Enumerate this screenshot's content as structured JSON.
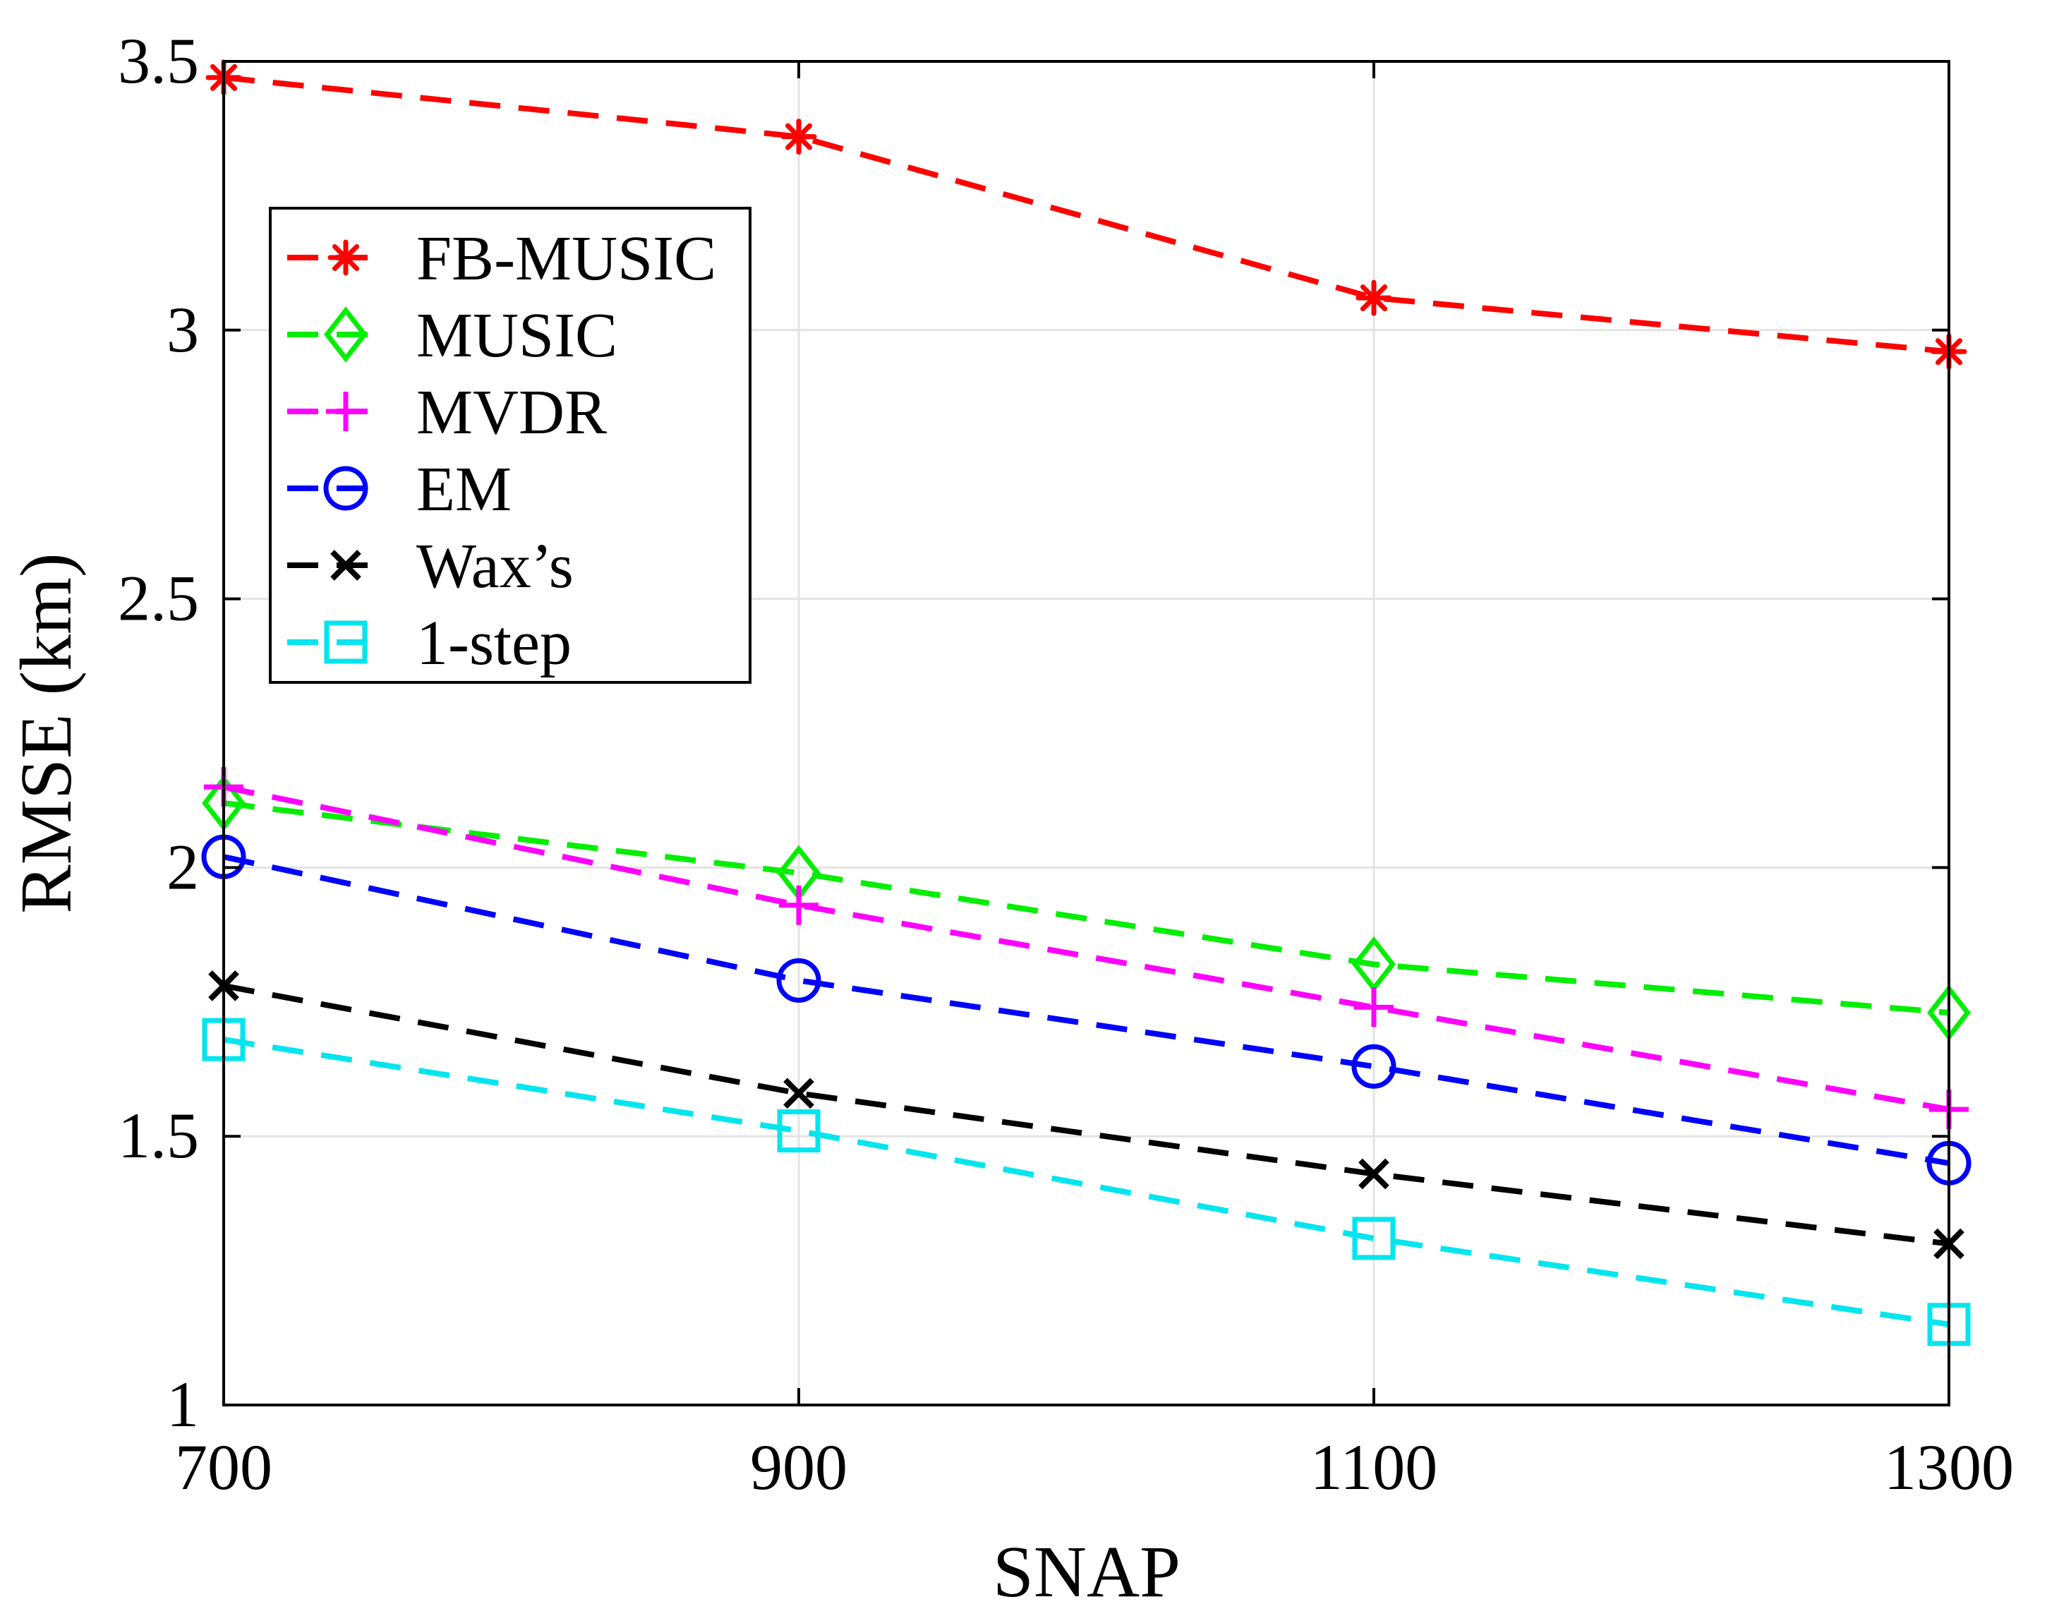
{
  "chart_data": {
    "type": "line",
    "title": "",
    "xlabel": "SNAP",
    "ylabel": "RMSE (km)",
    "x": [
      700,
      900,
      1100,
      1300
    ],
    "xlim": [
      700,
      1300
    ],
    "ylim": [
      1,
      3.5
    ],
    "xticks": [
      700,
      900,
      1100,
      1300
    ],
    "xtick_labels": [
      "700",
      "900",
      "1100",
      "1300"
    ],
    "yticks": [
      1,
      1.5,
      2,
      2.5,
      3,
      3.5
    ],
    "ytick_labels": [
      "1",
      "1.5",
      "2",
      "2.5",
      "3",
      "3.5"
    ],
    "grid": true,
    "legend_position": "upper-left",
    "series": [
      {
        "name": "FB-MUSIC",
        "color": "#ff0000",
        "marker": "asterisk",
        "values": [
          3.47,
          3.36,
          3.06,
          2.96
        ]
      },
      {
        "name": "MUSIC",
        "color": "#00ee00",
        "marker": "diamond",
        "values": [
          2.12,
          1.99,
          1.82,
          1.73
        ]
      },
      {
        "name": "MVDR",
        "color": "#ff00ff",
        "marker": "plus",
        "values": [
          2.15,
          1.93,
          1.74,
          1.55
        ]
      },
      {
        "name": "EM",
        "color": "#0000ff",
        "marker": "circle",
        "values": [
          2.02,
          1.79,
          1.63,
          1.45
        ]
      },
      {
        "name": "Wax’s",
        "color": "#000000",
        "marker": "x",
        "values": [
          1.78,
          1.58,
          1.43,
          1.3
        ]
      },
      {
        "name": "1-step",
        "color": "#00e5ee",
        "marker": "square",
        "values": [
          1.68,
          1.51,
          1.31,
          1.15
        ]
      }
    ]
  }
}
